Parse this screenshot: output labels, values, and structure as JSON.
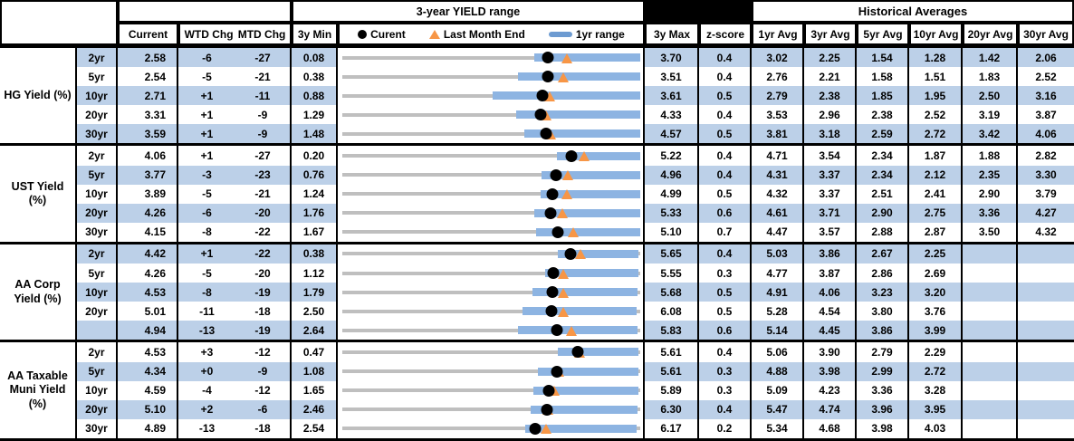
{
  "header": {
    "range_title": "3-year YIELD range",
    "historical_title": "Historical Averages",
    "col_current": "Current",
    "col_wtd": "WTD Chg",
    "col_mtd": "MTD Chg",
    "col_3y_min": "3y Min",
    "col_3y_max": "3y Max",
    "col_zscore": "z-score",
    "avg_columns": [
      "1yr Avg",
      "3yr Avg",
      "5yr Avg",
      "10yr Avg",
      "20yr Avg",
      "30yr Avg"
    ],
    "legend": {
      "current": "Curent",
      "last_month_end": "Last Month End",
      "range_1yr": "1yr range"
    }
  },
  "colors": {
    "row_stripe": "#BCD0E8",
    "range_bar_blue": "#8DB4E2",
    "track_gray": "#BFBFBF",
    "marker_triangle_orange": "#F79646",
    "marker_dot_black": "#000000",
    "border_black": "#000000",
    "header_bg": "#FFFFFF"
  },
  "chart_data": {
    "type": "table",
    "title": "3-year YIELD range",
    "legend_entries": [
      "Curent",
      "Last Month End",
      "1yr range"
    ],
    "notes": "Each row shows a 3y min-max track (gray), 1yr range (blue bar), current (black dot), last month end (orange triangle). Marker/bar numeric fields estimated from pixel positions.",
    "groups": [
      {
        "label": "HG Yield (%)",
        "rows": [
          {
            "tenor": "2yr",
            "current": "2.58",
            "wtd_chg": "-6",
            "mtd_chg": "-27",
            "min_3y": "0.08",
            "max_3y": "3.70",
            "z_score": "0.4",
            "avgs": [
              "3.02",
              "2.25",
              "1.54",
              "1.28",
              "1.42",
              "2.06"
            ],
            "range_1yr_low": 2.41,
            "range_1yr_high": 3.7,
            "last_month_end": 2.81
          },
          {
            "tenor": "5yr",
            "current": "2.54",
            "wtd_chg": "-5",
            "mtd_chg": "-21",
            "min_3y": "0.38",
            "max_3y": "3.51",
            "z_score": "0.4",
            "avgs": [
              "2.76",
              "2.21",
              "1.58",
              "1.51",
              "1.83",
              "2.52"
            ],
            "range_1yr_low": 2.23,
            "range_1yr_high": 3.51,
            "last_month_end": 2.7
          },
          {
            "tenor": "10yr",
            "current": "2.71",
            "wtd_chg": "+1",
            "mtd_chg": "-11",
            "min_3y": "0.88",
            "max_3y": "3.61",
            "z_score": "0.5",
            "avgs": [
              "2.79",
              "2.38",
              "1.85",
              "1.95",
              "2.50",
              "3.16"
            ],
            "range_1yr_low": 2.26,
            "range_1yr_high": 3.61,
            "last_month_end": 2.78
          },
          {
            "tenor": "20yr",
            "current": "3.31",
            "wtd_chg": "+1",
            "mtd_chg": "-9",
            "min_3y": "1.29",
            "max_3y": "4.33",
            "z_score": "0.4",
            "avgs": [
              "3.53",
              "2.96",
              "2.38",
              "2.52",
              "3.19",
              "3.87"
            ],
            "range_1yr_low": 3.06,
            "range_1yr_high": 4.33,
            "last_month_end": 3.37
          },
          {
            "tenor": "30yr",
            "current": "3.59",
            "wtd_chg": "+1",
            "mtd_chg": "-9",
            "min_3y": "1.48",
            "max_3y": "4.57",
            "z_score": "0.5",
            "avgs": [
              "3.81",
              "3.18",
              "2.59",
              "2.72",
              "3.42",
              "4.06"
            ],
            "range_1yr_low": 3.37,
            "range_1yr_high": 4.57,
            "last_month_end": 3.64
          }
        ]
      },
      {
        "label": "UST Yield (%)",
        "rows": [
          {
            "tenor": "2yr",
            "current": "4.06",
            "wtd_chg": "+1",
            "mtd_chg": "-27",
            "min_3y": "0.20",
            "max_3y": "5.22",
            "z_score": "0.4",
            "avgs": [
              "4.71",
              "3.54",
              "2.34",
              "1.87",
              "1.88",
              "2.82"
            ],
            "range_1yr_low": 3.82,
            "range_1yr_high": 5.22,
            "last_month_end": 4.28
          },
          {
            "tenor": "5yr",
            "current": "3.77",
            "wtd_chg": "-3",
            "mtd_chg": "-23",
            "min_3y": "0.76",
            "max_3y": "4.96",
            "z_score": "0.4",
            "avgs": [
              "4.31",
              "3.37",
              "2.34",
              "2.12",
              "2.35",
              "3.30"
            ],
            "range_1yr_low": 3.57,
            "range_1yr_high": 4.96,
            "last_month_end": 3.94
          },
          {
            "tenor": "10yr",
            "current": "3.89",
            "wtd_chg": "-5",
            "mtd_chg": "-21",
            "min_3y": "1.24",
            "max_3y": "4.99",
            "z_score": "0.5",
            "avgs": [
              "4.32",
              "3.37",
              "2.51",
              "2.41",
              "2.90",
              "3.79"
            ],
            "range_1yr_low": 3.74,
            "range_1yr_high": 4.99,
            "last_month_end": 4.07
          },
          {
            "tenor": "20yr",
            "current": "4.26",
            "wtd_chg": "-6",
            "mtd_chg": "-20",
            "min_3y": "1.76",
            "max_3y": "5.33",
            "z_score": "0.6",
            "avgs": [
              "4.61",
              "3.71",
              "2.90",
              "2.75",
              "3.36",
              "4.27"
            ],
            "range_1yr_low": 4.06,
            "range_1yr_high": 5.33,
            "last_month_end": 4.4
          },
          {
            "tenor": "30yr",
            "current": "4.15",
            "wtd_chg": "-8",
            "mtd_chg": "-22",
            "min_3y": "1.67",
            "max_3y": "5.10",
            "z_score": "0.7",
            "avgs": [
              "4.47",
              "3.57",
              "2.88",
              "2.87",
              "3.50",
              "4.32"
            ],
            "range_1yr_low": 3.9,
            "range_1yr_high": 5.1,
            "last_month_end": 4.33
          }
        ]
      },
      {
        "label": "AA Corp Yield (%)",
        "rows": [
          {
            "tenor": "2yr",
            "current": "4.42",
            "wtd_chg": "+1",
            "mtd_chg": "-22",
            "min_3y": "0.38",
            "max_3y": "5.65",
            "z_score": "0.4",
            "avgs": [
              "5.03",
              "3.86",
              "2.67",
              "2.25",
              "",
              ""
            ],
            "range_1yr_low": 4.2,
            "range_1yr_high": 5.62,
            "last_month_end": 4.59
          },
          {
            "tenor": "5yr",
            "current": "4.26",
            "wtd_chg": "-5",
            "mtd_chg": "-20",
            "min_3y": "1.12",
            "max_3y": "5.55",
            "z_score": "0.3",
            "avgs": [
              "4.77",
              "3.87",
              "2.86",
              "2.69",
              "",
              ""
            ],
            "range_1yr_low": 4.13,
            "range_1yr_high": 5.52,
            "last_month_end": 4.41
          },
          {
            "tenor": "10yr",
            "current": "4.53",
            "wtd_chg": "-8",
            "mtd_chg": "-19",
            "min_3y": "1.79",
            "max_3y": "5.68",
            "z_score": "0.5",
            "avgs": [
              "4.91",
              "4.06",
              "3.23",
              "3.20",
              "",
              ""
            ],
            "range_1yr_low": 4.27,
            "range_1yr_high": 5.65,
            "last_month_end": 4.68
          },
          {
            "tenor": "20yr",
            "current": "5.01",
            "wtd_chg": "-11",
            "mtd_chg": "-18",
            "min_3y": "2.50",
            "max_3y": "6.08",
            "z_score": "0.5",
            "avgs": [
              "5.28",
              "4.54",
              "3.80",
              "3.76",
              "",
              ""
            ],
            "range_1yr_low": 4.67,
            "range_1yr_high": 6.04,
            "last_month_end": 5.15
          },
          {
            "tenor": "",
            "current": "4.94",
            "wtd_chg": "-13",
            "mtd_chg": "-19",
            "min_3y": "2.64",
            "max_3y": "5.83",
            "z_score": "0.6",
            "avgs": [
              "5.14",
              "4.45",
              "3.86",
              "3.99",
              "",
              ""
            ],
            "range_1yr_low": 4.52,
            "range_1yr_high": 5.8,
            "last_month_end": 5.09
          }
        ]
      },
      {
        "label": "AA Taxable Muni Yield (%)",
        "rows": [
          {
            "tenor": "2yr",
            "current": "4.53",
            "wtd_chg": "+3",
            "mtd_chg": "-12",
            "min_3y": "0.47",
            "max_3y": "5.61",
            "z_score": "0.4",
            "avgs": [
              "5.06",
              "3.90",
              "2.79",
              "2.29",
              "",
              ""
            ],
            "range_1yr_low": 4.19,
            "range_1yr_high": 5.58,
            "last_month_end": 4.57
          },
          {
            "tenor": "5yr",
            "current": "4.34",
            "wtd_chg": "+0",
            "mtd_chg": "-9",
            "min_3y": "1.08",
            "max_3y": "5.61",
            "z_score": "0.3",
            "avgs": [
              "4.88",
              "3.98",
              "2.99",
              "2.72",
              "",
              ""
            ],
            "range_1yr_low": 4.06,
            "range_1yr_high": 5.58,
            "last_month_end": 4.37
          },
          {
            "tenor": "10yr",
            "current": "4.59",
            "wtd_chg": "-4",
            "mtd_chg": "-12",
            "min_3y": "1.65",
            "max_3y": "5.89",
            "z_score": "0.3",
            "avgs": [
              "5.09",
              "4.23",
              "3.36",
              "3.28",
              "",
              ""
            ],
            "range_1yr_low": 4.37,
            "range_1yr_high": 5.86,
            "last_month_end": 4.66
          },
          {
            "tenor": "20yr",
            "current": "5.10",
            "wtd_chg": "+2",
            "mtd_chg": "-6",
            "min_3y": "2.46",
            "max_3y": "6.30",
            "z_score": "0.4",
            "avgs": [
              "5.47",
              "4.74",
              "3.96",
              "3.95",
              "",
              ""
            ],
            "range_1yr_low": 4.89,
            "range_1yr_high": 6.26,
            "last_month_end": 5.11
          },
          {
            "tenor": "30yr",
            "current": "4.89",
            "wtd_chg": "-13",
            "mtd_chg": "-18",
            "min_3y": "2.54",
            "max_3y": "6.17",
            "z_score": "0.2",
            "avgs": [
              "5.34",
              "4.68",
              "3.98",
              "4.03",
              "",
              ""
            ],
            "range_1yr_low": 4.77,
            "range_1yr_high": 6.13,
            "last_month_end": 5.02
          }
        ]
      }
    ]
  }
}
